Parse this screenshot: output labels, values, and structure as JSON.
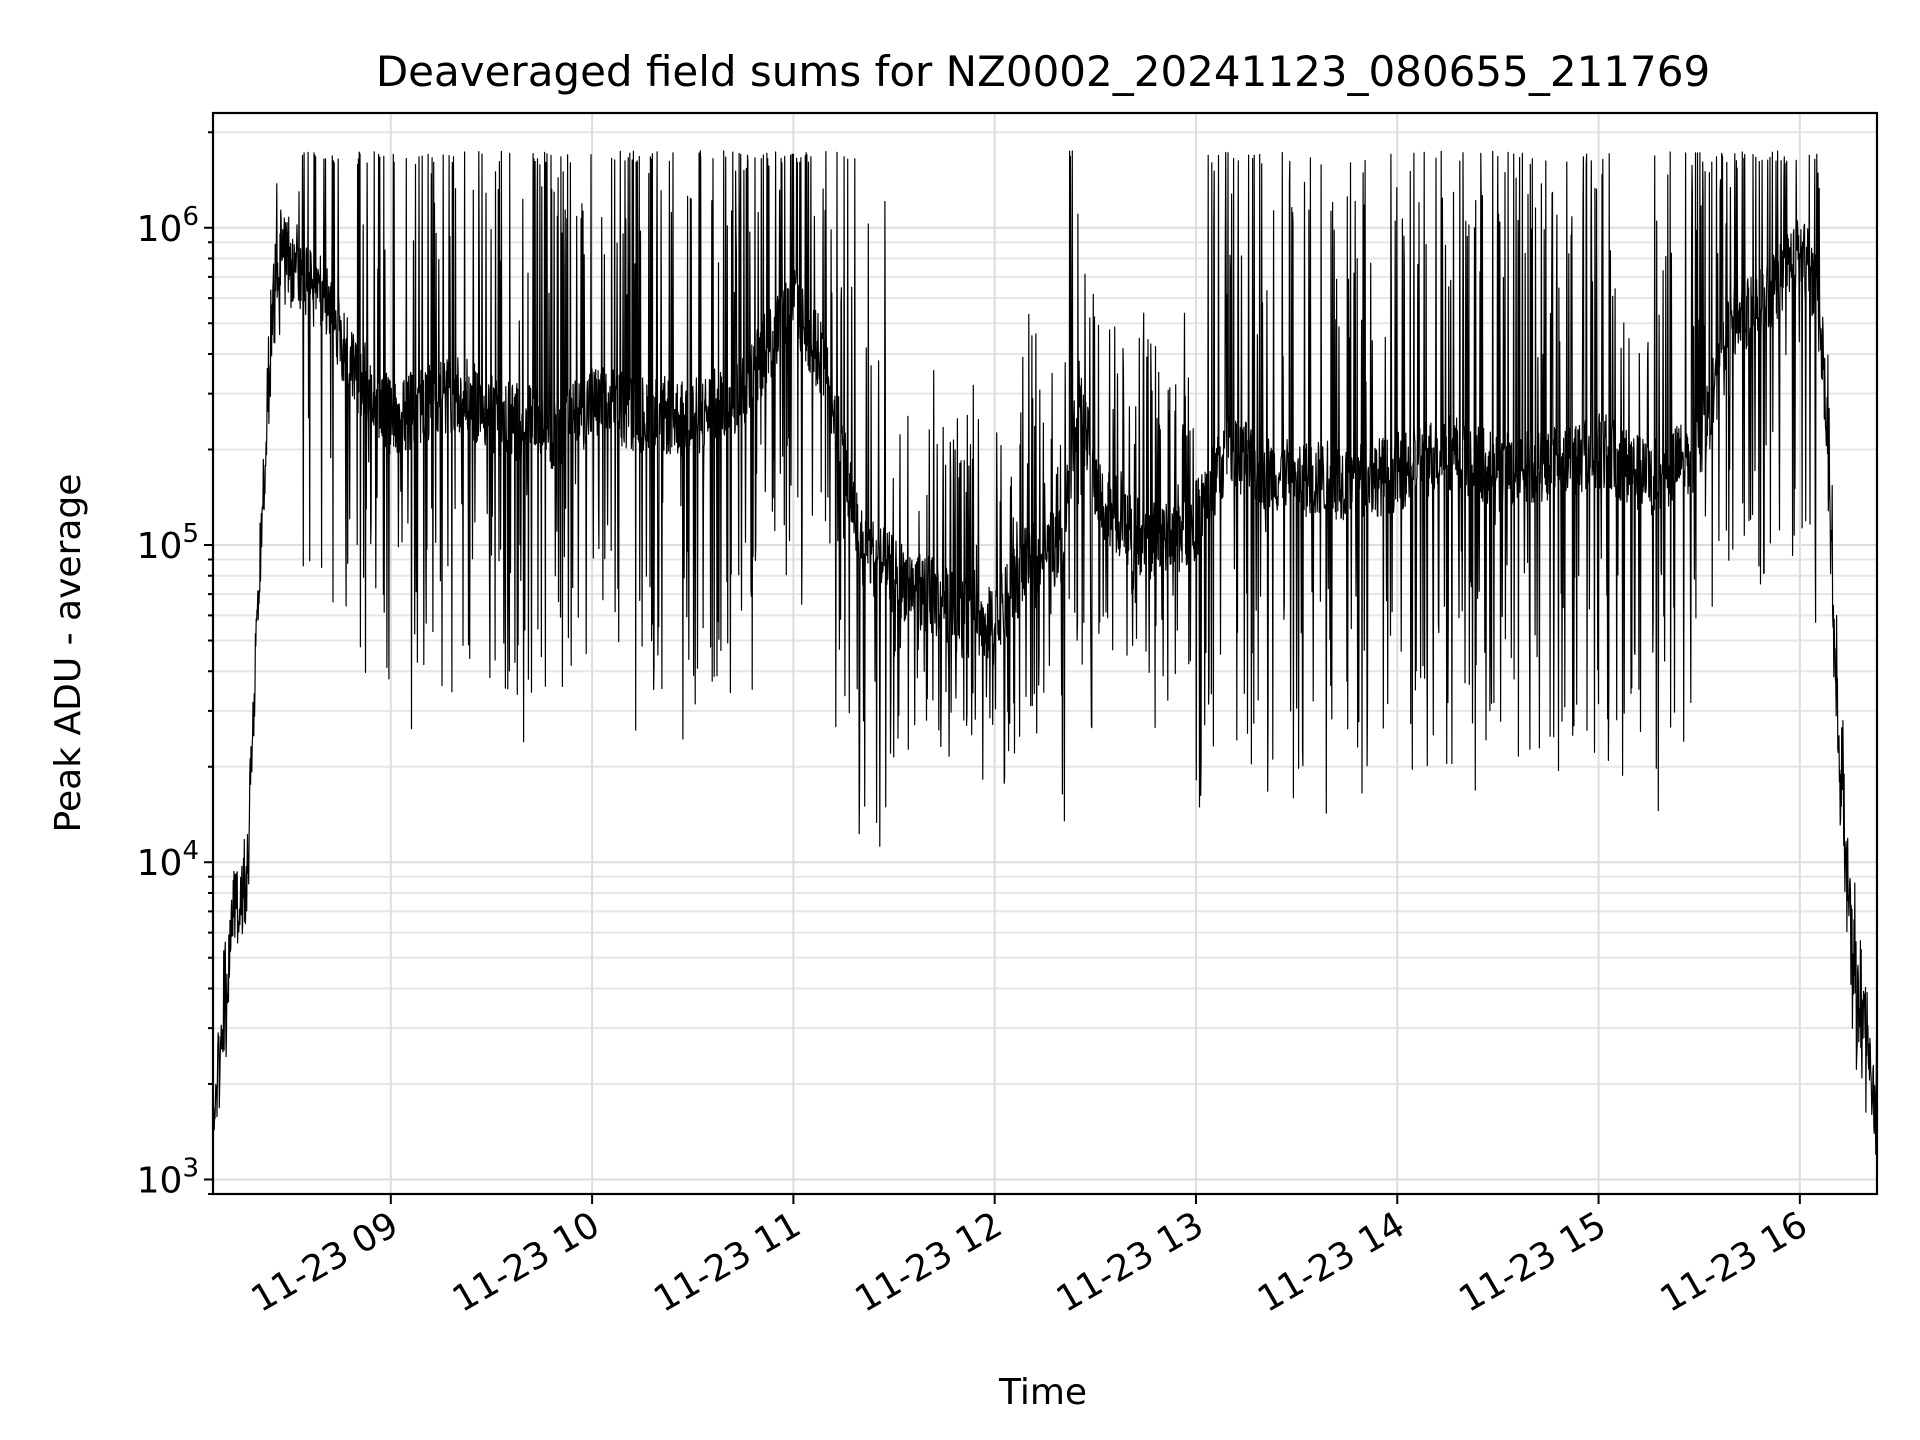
{
  "chart_data": {
    "type": "line",
    "title": "Deaveraged field sums for NZ0002_20241123_080655_211769",
    "xlabel": "Time",
    "ylabel": "Peak ADU - average",
    "yscale": "log",
    "ylim": [
      900,
      2300000
    ],
    "xlim": [
      "2024-11-23 08:07",
      "2024-11-23 16:23"
    ],
    "x_ticks": [
      "11-23 09",
      "11-23 10",
      "11-23 11",
      "11-23 12",
      "11-23 13",
      "11-23 14",
      "11-23 15",
      "11-23 16"
    ],
    "y_ticks": [
      {
        "base": "10",
        "exp": "3"
      },
      {
        "base": "10",
        "exp": "4"
      },
      {
        "base": "10",
        "exp": "5"
      },
      {
        "base": "10",
        "exp": "6"
      }
    ],
    "grid": "major and minor",
    "line_color": "#000000",
    "series": [
      {
        "x": [
          "08:07",
          "08:09",
          "08:11",
          "08:13",
          "08:15",
          "08:17",
          "08:19",
          "08:21",
          "08:23",
          "08:24",
          "08:26",
          "08:28",
          "08:30",
          "08:33",
          "08:36",
          "08:40",
          "08:45",
          "08:50",
          "08:55",
          "09:00",
          "09:10",
          "09:20",
          "09:30",
          "09:40",
          "09:50",
          "10:00",
          "10:15",
          "10:30",
          "10:45",
          "11:00",
          "11:10",
          "11:20",
          "11:30",
          "11:40",
          "11:50",
          "12:00",
          "12:10",
          "12:20",
          "12:25",
          "12:30",
          "12:40",
          "12:50",
          "13:00",
          "13:10",
          "13:20",
          "13:30",
          "13:40",
          "13:50",
          "14:00",
          "14:15",
          "14:30",
          "14:45",
          "15:00",
          "15:15",
          "15:30",
          "15:40",
          "15:50",
          "16:00",
          "16:05",
          "16:08",
          "16:11",
          "16:14",
          "16:16",
          "16:18",
          "16:20",
          "16:23"
        ],
        "y": [
          1500,
          2500,
          3200,
          8000,
          7000,
          9000,
          30000,
          90000,
          250000,
          400000,
          800000,
          900000,
          750000,
          700000,
          650000,
          600000,
          450000,
          350000,
          300000,
          250000,
          280000,
          300000,
          260000,
          240000,
          230000,
          280000,
          260000,
          250000,
          300000,
          600000,
          350000,
          100000,
          80000,
          70000,
          60000,
          55000,
          90000,
          100000,
          300000,
          150000,
          110000,
          100000,
          120000,
          200000,
          170000,
          160000,
          160000,
          160000,
          170000,
          200000,
          170000,
          180000,
          200000,
          160000,
          200000,
          500000,
          600000,
          850000,
          650000,
          250000,
          30000,
          8000,
          5000,
          3500,
          2500,
          1600
        ]
      }
    ]
  }
}
